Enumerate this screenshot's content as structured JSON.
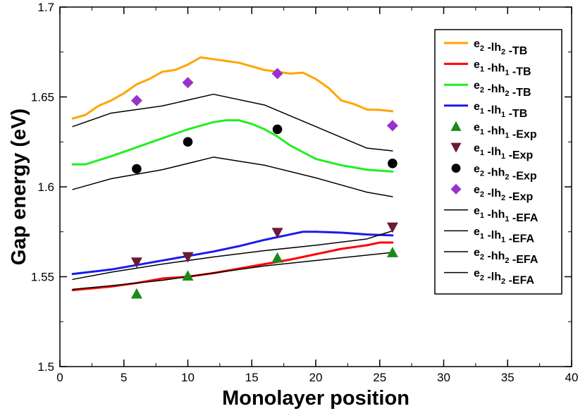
{
  "chart_data": {
    "type": "line",
    "title": "",
    "xlabel": "Monolayer position",
    "ylabel": "Gap energy (eV)",
    "xlim": [
      0,
      40
    ],
    "ylim": [
      1.5,
      1.7
    ],
    "xticks": [
      0,
      5,
      10,
      15,
      20,
      25,
      30,
      35,
      40
    ],
    "xtick_labels": [
      "0",
      "5",
      "10",
      "15",
      "20",
      "25",
      "30",
      "35",
      "40"
    ],
    "yticks": [
      1.5,
      1.55,
      1.6,
      1.65,
      1.7
    ],
    "ytick_labels": [
      "1.5",
      "1.55",
      "1.6",
      "1.65",
      "1.7"
    ],
    "grid": false,
    "legend_position": "top-right",
    "series": [
      {
        "id": "e2-lh2-tb",
        "label_parts": [
          [
            "e",
            "2"
          ],
          [
            " -lh",
            "2"
          ],
          [
            " -TB",
            ""
          ]
        ],
        "kind": "line",
        "color": "#ffa500",
        "width": 3,
        "x": [
          1,
          2,
          3,
          4,
          5,
          6,
          7,
          8,
          9,
          10,
          11,
          12,
          13,
          14,
          15,
          16,
          17,
          18,
          19,
          20,
          21,
          22,
          23,
          24,
          25,
          26
        ],
        "y": [
          1.638,
          1.64,
          1.645,
          1.648,
          1.652,
          1.657,
          1.66,
          1.664,
          1.665,
          1.668,
          1.672,
          1.671,
          1.67,
          1.669,
          1.667,
          1.665,
          1.664,
          1.663,
          1.6635,
          1.66,
          1.655,
          1.648,
          1.646,
          1.643,
          1.6428,
          1.642
        ]
      },
      {
        "id": "e1-hh1-tb",
        "label_parts": [
          [
            "e",
            "1"
          ],
          [
            " -hh",
            "1"
          ],
          [
            " -TB",
            ""
          ]
        ],
        "kind": "line",
        "color": "#ff0000",
        "width": 3,
        "x": [
          1,
          4,
          6,
          8,
          10,
          12,
          14,
          16,
          18,
          20,
          22,
          24,
          25,
          26
        ],
        "y": [
          1.5425,
          1.5445,
          1.5465,
          1.549,
          1.55,
          1.552,
          1.5545,
          1.557,
          1.5595,
          1.5625,
          1.5655,
          1.5675,
          1.569,
          1.569
        ]
      },
      {
        "id": "e2-hh2-tb",
        "label_parts": [
          [
            "e",
            "2"
          ],
          [
            " -hh",
            "2"
          ],
          [
            " -TB",
            ""
          ]
        ],
        "kind": "line",
        "color": "#22ee22",
        "width": 3,
        "x": [
          1,
          2,
          4,
          6,
          8,
          10,
          12,
          13,
          14,
          15,
          16,
          17,
          18,
          20,
          22,
          24,
          26
        ],
        "y": [
          1.6125,
          1.6125,
          1.617,
          1.622,
          1.627,
          1.632,
          1.636,
          1.637,
          1.637,
          1.635,
          1.632,
          1.628,
          1.623,
          1.6155,
          1.612,
          1.6095,
          1.6085
        ]
      },
      {
        "id": "e1-lh1-tb",
        "label_parts": [
          [
            "e",
            "1"
          ],
          [
            " -lh",
            "1"
          ],
          [
            " -TB",
            ""
          ]
        ],
        "kind": "line",
        "color": "#1a1aee",
        "width": 3,
        "x": [
          1,
          4,
          6,
          8,
          10,
          12,
          14,
          16,
          18,
          19,
          20,
          22,
          24,
          26
        ],
        "y": [
          1.5515,
          1.554,
          1.5565,
          1.559,
          1.5615,
          1.564,
          1.567,
          1.5705,
          1.5735,
          1.575,
          1.575,
          1.5745,
          1.5735,
          1.573
        ]
      },
      {
        "id": "e1-hh1-exp",
        "label_parts": [
          [
            "e",
            "1"
          ],
          [
            " -hh",
            "1"
          ],
          [
            " -Exp",
            ""
          ]
        ],
        "kind": "scatter",
        "marker": "triangle-up",
        "color": "#1a8a1a",
        "x": [
          6,
          10,
          17,
          26
        ],
        "y": [
          1.5405,
          1.5505,
          1.5605,
          1.5635
        ]
      },
      {
        "id": "e1-lh1-exp",
        "label_parts": [
          [
            "e",
            "1"
          ],
          [
            " -lh",
            "1"
          ],
          [
            " -Exp",
            ""
          ]
        ],
        "kind": "scatter",
        "marker": "triangle-down",
        "color": "#6b1a36",
        "x": [
          6,
          10,
          17,
          26
        ],
        "y": [
          1.558,
          1.561,
          1.5745,
          1.5775
        ]
      },
      {
        "id": "e2-hh2-exp",
        "label_parts": [
          [
            "e",
            "2"
          ],
          [
            " -hh",
            "2"
          ],
          [
            " -Exp",
            ""
          ]
        ],
        "kind": "scatter",
        "marker": "circle",
        "color": "#000000",
        "x": [
          6,
          10,
          17,
          26
        ],
        "y": [
          1.61,
          1.625,
          1.632,
          1.613
        ]
      },
      {
        "id": "e2-lh2-exp",
        "label_parts": [
          [
            "e",
            "2"
          ],
          [
            " -lh",
            "2"
          ],
          [
            " -Exp",
            ""
          ]
        ],
        "kind": "scatter",
        "marker": "diamond",
        "color": "#9932cc",
        "x": [
          6,
          10,
          17,
          26
        ],
        "y": [
          1.648,
          1.658,
          1.663,
          1.634
        ]
      },
      {
        "id": "e1-hh1-efa",
        "label_parts": [
          [
            "e",
            "1"
          ],
          [
            " -hh",
            "1"
          ],
          [
            " -EFA",
            ""
          ]
        ],
        "kind": "line",
        "color": "#000000",
        "width": 1.5,
        "x": [
          1,
          4,
          8,
          12,
          16,
          20,
          24,
          26
        ],
        "y": [
          1.543,
          1.545,
          1.548,
          1.552,
          1.556,
          1.559,
          1.562,
          1.5635
        ]
      },
      {
        "id": "e1-lh1-efa",
        "label_parts": [
          [
            "e",
            "1"
          ],
          [
            " -lh",
            "1"
          ],
          [
            " -EFA",
            ""
          ]
        ],
        "kind": "line",
        "color": "#000000",
        "width": 1.5,
        "x": [
          1,
          4,
          8,
          12,
          16,
          20,
          24,
          26
        ],
        "y": [
          1.5485,
          1.5525,
          1.557,
          1.561,
          1.5645,
          1.5675,
          1.571,
          1.5755
        ]
      },
      {
        "id": "e2-hh2-efa",
        "label_parts": [
          [
            "e",
            "2"
          ],
          [
            " -hh",
            "2"
          ],
          [
            " -EFA",
            ""
          ]
        ],
        "kind": "line",
        "color": "#000000",
        "width": 1.5,
        "x": [
          1,
          4,
          8,
          12,
          16,
          20,
          24,
          26
        ],
        "y": [
          1.5985,
          1.6045,
          1.6095,
          1.6165,
          1.612,
          1.605,
          1.597,
          1.5945
        ]
      },
      {
        "id": "e2-lh2-efa",
        "label_parts": [
          [
            "e",
            "2"
          ],
          [
            " -lh",
            "2"
          ],
          [
            " -EFA",
            ""
          ]
        ],
        "kind": "line",
        "color": "#000000",
        "width": 1.5,
        "x": [
          1,
          4,
          8,
          12,
          16,
          20,
          24,
          26
        ],
        "y": [
          1.6335,
          1.641,
          1.645,
          1.6515,
          1.6455,
          1.6335,
          1.6215,
          1.62
        ]
      }
    ]
  }
}
